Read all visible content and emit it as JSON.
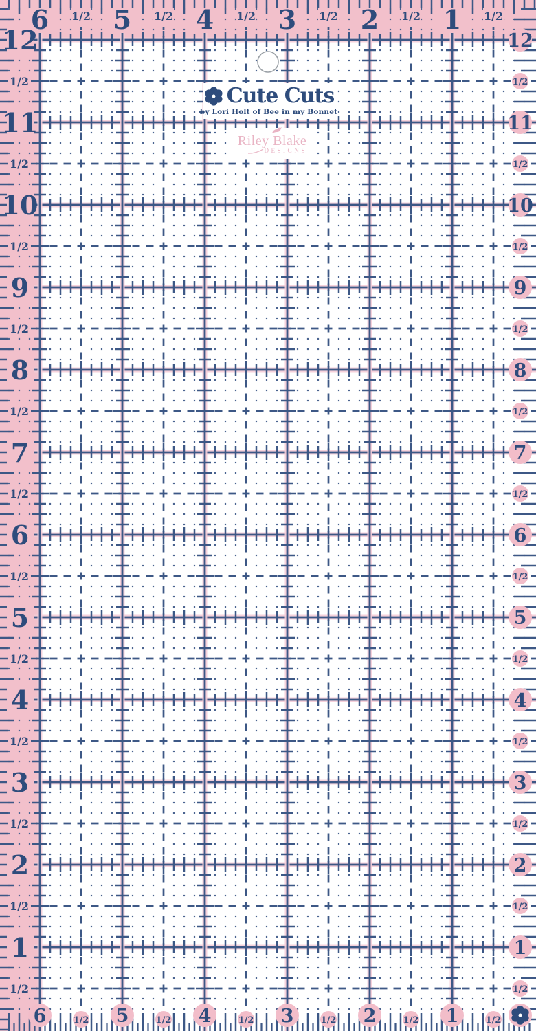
{
  "logo": {
    "brand": "Cute Cuts",
    "tagline": "by Lori Holt of Bee in my Bonnet",
    "maker_name": "Riley Blake",
    "maker_designs": "DESIGNS"
  },
  "scales": {
    "top": {
      "whole": [
        "6",
        "5",
        "4",
        "3",
        "2",
        "1"
      ],
      "half_label": "1/2"
    },
    "left": {
      "whole": [
        "12",
        "11",
        "10",
        "9",
        "8",
        "7",
        "6",
        "5",
        "4",
        "3",
        "2",
        "1"
      ],
      "half_label": "1/2"
    },
    "right": {
      "whole": [
        "12",
        "11",
        "10",
        "9",
        "8",
        "7",
        "6",
        "5",
        "4",
        "3",
        "2",
        "1"
      ],
      "half_label": "1/2"
    },
    "bottom": {
      "whole": [
        "6",
        "5",
        "4",
        "3",
        "2",
        "1"
      ],
      "half_label": "1/2"
    }
  },
  "icons": {
    "flower": "six-petal-flower",
    "bird": "bird-silhouette",
    "hole": "hanging-hole"
  },
  "colors": {
    "navy_text": "#2e4c7c",
    "navy_line": "#3d5886",
    "navy_dot": "#4a6390",
    "pink_band": "#f2c0cb",
    "pink_circle": "#f2bdc9",
    "pink_halo": "#f4cdd8",
    "pink_logo": "#e9b4c4",
    "hole_ring": "#9aa0a6",
    "white": "#ffffff"
  }
}
